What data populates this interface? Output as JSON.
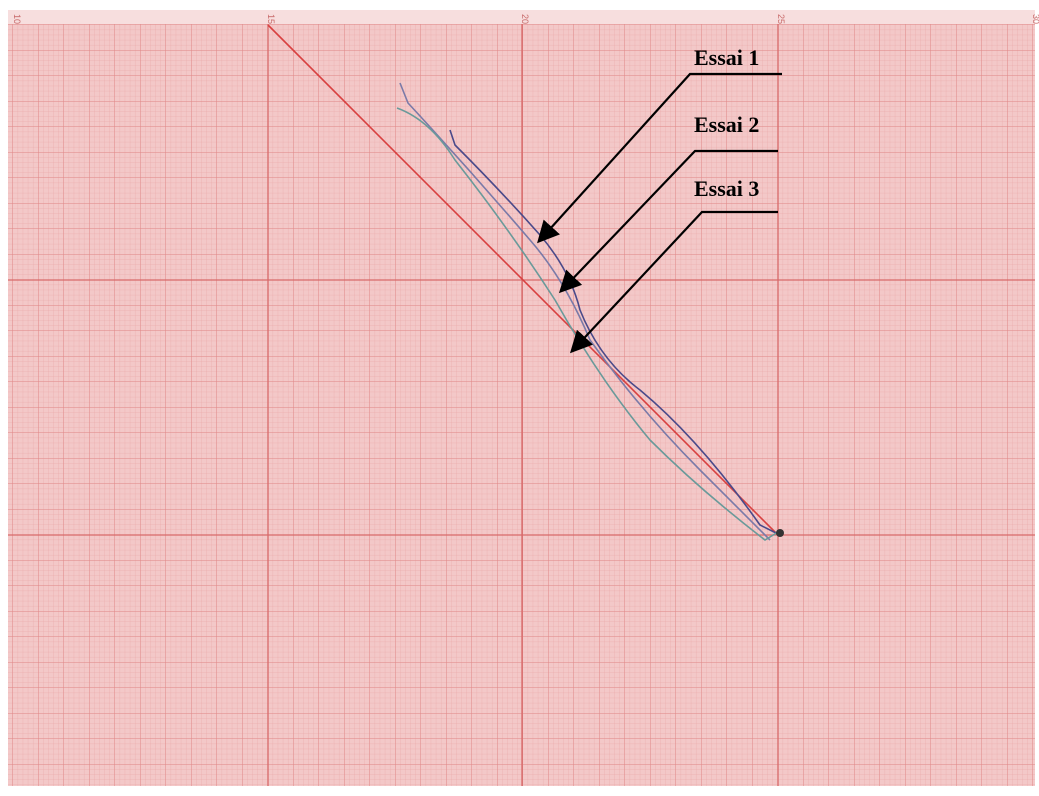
{
  "scale_labels": [
    "10",
    "15",
    "20",
    "25",
    "30"
  ],
  "annotations": [
    "Essai 1",
    "Essai 2",
    "Essai 3"
  ]
}
